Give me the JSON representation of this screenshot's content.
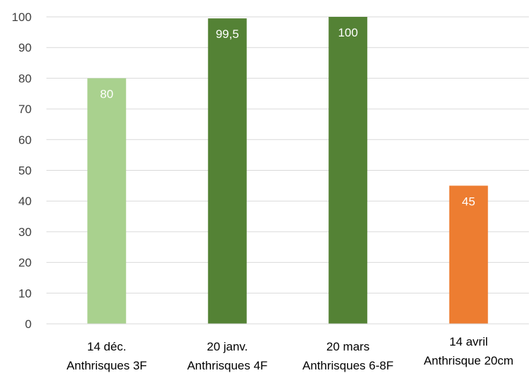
{
  "chart_data": {
    "type": "bar",
    "categories": [
      [
        "14 déc.",
        "Anthrisques 3F"
      ],
      [
        "20 janv.",
        "Anthrisques 4F"
      ],
      [
        "20 mars",
        "Anthrisques 6-8F"
      ],
      [
        "14 avril",
        "Anthrisque 20cm"
      ]
    ],
    "values": [
      80,
      99.5,
      100,
      45
    ],
    "value_labels": [
      "80",
      "99,5",
      "100",
      "45"
    ],
    "colors": [
      "#a9d18e",
      "#548235",
      "#548235",
      "#ed7d31"
    ],
    "ylim": [
      0,
      100
    ],
    "yticks": [
      0,
      10,
      20,
      30,
      40,
      50,
      60,
      70,
      80,
      90,
      100
    ],
    "grid": true,
    "legend": "none",
    "title": "",
    "xlabel": "",
    "ylabel": ""
  }
}
